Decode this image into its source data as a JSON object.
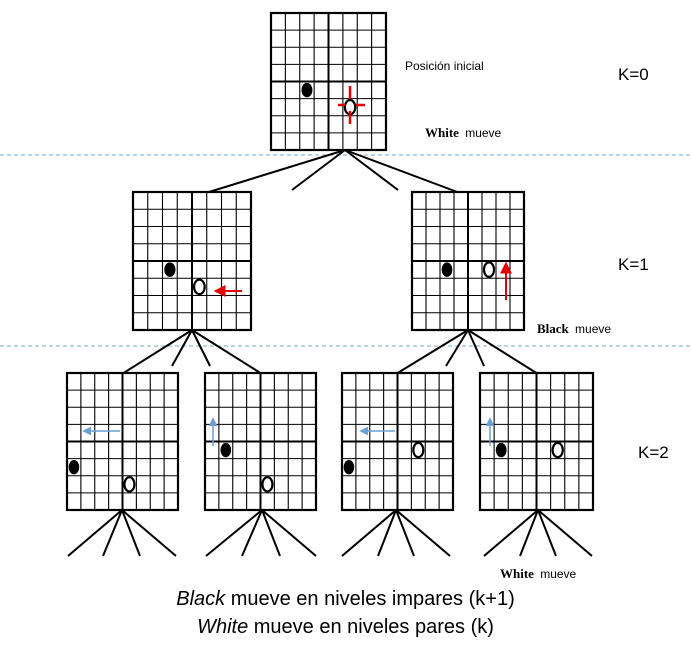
{
  "labels": {
    "initial_position": "Posición inicial",
    "white_moves": {
      "player": "White",
      "verb": "mueve"
    },
    "black_moves": {
      "player": "Black",
      "verb": "mueve"
    },
    "white_moves_bottom": {
      "player": "White",
      "verb": "mueve"
    }
  },
  "levels": [
    "K=0",
    "K=1",
    "K=2"
  ],
  "caption": {
    "line1": {
      "player": "Black",
      "text": " mueve en niveles impares (k+1)"
    },
    "line2": {
      "player": "White",
      "text": " mueve en niveles pares (k)"
    }
  },
  "colors": {
    "grid": "#000000",
    "red_arrow": "#e00000",
    "blue_arrow": "#6a9fd4",
    "separator": "#7aa7c7"
  }
}
